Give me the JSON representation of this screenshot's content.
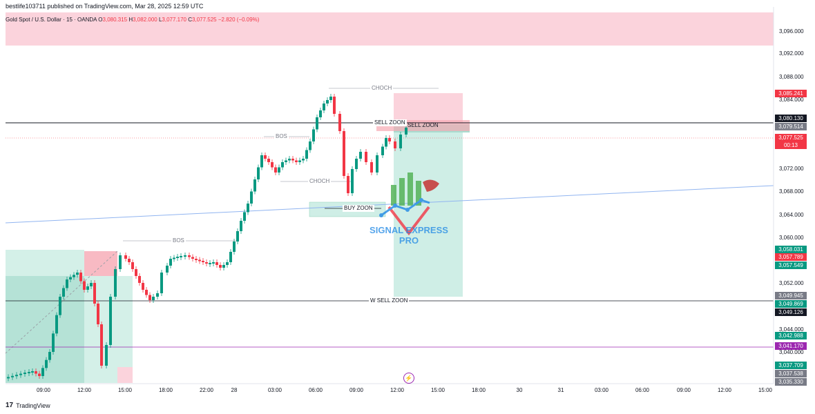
{
  "publish_info": "bestlife103711 published on TradingView.com, Mar 28, 2025 12:59 UTC",
  "symbol": {
    "name": "Gold Spot / U.S. Dollar · 15 · OANDA",
    "open_label": "O",
    "open": "3,080.315",
    "high_label": "H",
    "high": "3,082.000",
    "low_label": "L",
    "low": "3,077.170",
    "close_label": "C",
    "close": "3,077.525",
    "change": "−2.820 (−0.09%)"
  },
  "price_axis": [
    "3,096.000",
    "3,092.000",
    "3,088.000",
    "3,084.000",
    "3,072.000",
    "3,068.000",
    "3,064.000",
    "3,060.000",
    "3,052.000",
    "3,044.000",
    "3,040.000"
  ],
  "price_tags": [
    {
      "label": "3,085.241",
      "color": "#f23645"
    },
    {
      "label": "3,080.130",
      "color": "#131722"
    },
    {
      "label": "3,079.514",
      "color": "#787b86"
    },
    {
      "label": "3,077.525",
      "color": "#f23645"
    },
    {
      "label": "00:13",
      "color": "#f23645"
    },
    {
      "label": "3,058.031",
      "color": "#089981"
    },
    {
      "label": "3,057.789",
      "color": "#f23645"
    },
    {
      "label": "3,057.549",
      "color": "#089981"
    },
    {
      "label": "3,049.945",
      "color": "#787b86"
    },
    {
      "label": "3,049.869",
      "color": "#089981"
    },
    {
      "label": "3,049.126",
      "color": "#131722"
    },
    {
      "label": "3,042.988",
      "color": "#089981"
    },
    {
      "label": "3,041.170",
      "color": "#9c27b0"
    },
    {
      "label": "3,037.709",
      "color": "#089981"
    },
    {
      "label": "3,037.538",
      "color": "#787b86"
    },
    {
      "label": "3,035.330",
      "color": "#787b86"
    }
  ],
  "time_axis": [
    "09:00",
    "12:00",
    "15:00",
    "18:00",
    "22:00",
    "28",
    "03:00",
    "06:00",
    "09:00",
    "12:00",
    "15:00",
    "18:00",
    "30",
    "31",
    "03:00",
    "06:00",
    "09:00",
    "12:00",
    "15:00"
  ],
  "annotations": {
    "choch_top": "CHOCH",
    "choch_mid": "CHOCH",
    "bos_top": "BOS",
    "bos_low": "BOS",
    "sell_zoon_left": "SELL ZOON",
    "sell_zoon_right": "SELL ZOON",
    "buy_zoon": "BUY ZOON",
    "w_sell_zoon": "W SELL ZOON"
  },
  "watermark": {
    "line1": "SIGNAL EXPRESS",
    "line2": "PRO"
  },
  "footer": {
    "logo": "17",
    "brand": "TradingView"
  },
  "colors": {
    "up": "#089981",
    "down": "#f23645",
    "zone_red": "#fbd3dc",
    "zone_green": "#cfeee6",
    "trend": "#90b4f0",
    "purple": "#9c27b0"
  }
}
